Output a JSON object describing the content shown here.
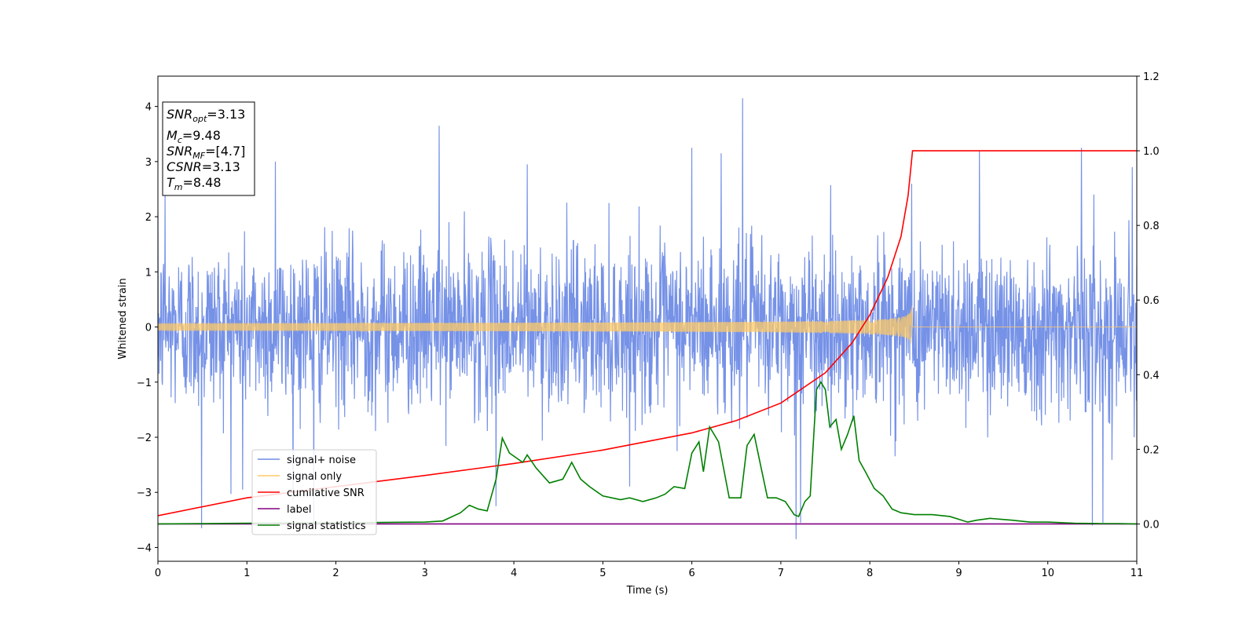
{
  "chart_data": {
    "type": "line",
    "xlabel": "Time (s)",
    "ylabel": "Whitened strain",
    "xlim": [
      0,
      11
    ],
    "ylim_left": [
      -4.25,
      4.55
    ],
    "ylim_right": [
      -0.1,
      1.2
    ],
    "x_ticks": [
      "0",
      "1",
      "2",
      "3",
      "4",
      "5",
      "6",
      "7",
      "8",
      "9",
      "10",
      "11"
    ],
    "y_left_ticks": [
      "4",
      "3",
      "2",
      "1",
      "0",
      "−1",
      "−2",
      "−3",
      "−4"
    ],
    "y_right_ticks": [
      "1.2",
      "1.0",
      "0.8",
      "0.6",
      "0.4",
      "0.2",
      "0.0"
    ],
    "info_box": {
      "snr_opt": {
        "base": "SNR",
        "sub": "opt",
        "value": "=3.13"
      },
      "mc": {
        "base": "M",
        "sub": "c",
        "value": "=9.48"
      },
      "snr_mf": {
        "base": "SNR",
        "sub": "MF",
        "value": "=[4.7]"
      },
      "csnr": {
        "base": "CSNR",
        "sub": "",
        "value": "=3.13"
      },
      "tm": {
        "base": "T",
        "sub": "m",
        "value": "=8.48"
      }
    },
    "legend": [
      {
        "label": "signal+ noise",
        "color": "#6f8ce6"
      },
      {
        "label": "signal only",
        "color": "#ffc966"
      },
      {
        "label": "cumilative SNR",
        "color": "#ff0000"
      },
      {
        "label": "label",
        "color": "#800080"
      },
      {
        "label": "signal statistics",
        "color": "#008000"
      }
    ],
    "series": [
      {
        "name": "signal+ noise",
        "axis": "left",
        "color": "#6f8ce6",
        "envelope_std": 0.75,
        "spikes": [
          {
            "x": 0.08,
            "y": 2.4
          },
          {
            "x": 0.49,
            "y": -3.65
          },
          {
            "x": 0.95,
            "y": -2.95
          },
          {
            "x": 1.32,
            "y": 3.0
          },
          {
            "x": 1.75,
            "y": -3.55
          },
          {
            "x": 3.16,
            "y": 3.65
          },
          {
            "x": 3.8,
            "y": -3.25
          },
          {
            "x": 4.15,
            "y": 2.95
          },
          {
            "x": 6.0,
            "y": 3.25
          },
          {
            "x": 6.33,
            "y": 3.15
          },
          {
            "x": 6.57,
            "y": 4.15
          },
          {
            "x": 7.17,
            "y": -3.85
          },
          {
            "x": 7.22,
            "y": -3.55
          },
          {
            "x": 8.47,
            "y": 2.6
          },
          {
            "x": 9.23,
            "y": 3.2
          },
          {
            "x": 10.38,
            "y": 3.25
          },
          {
            "x": 10.5,
            "y": -3.6
          },
          {
            "x": 10.62,
            "y": -3.55
          },
          {
            "x": 10.95,
            "y": 2.9
          }
        ]
      },
      {
        "name": "signal only",
        "axis": "left",
        "color": "#ffc966",
        "merger_time": 8.48,
        "peak_amplitude": 0.5
      },
      {
        "name": "cumilative SNR",
        "axis": "right",
        "color": "#ff0000",
        "x": [
          0,
          1,
          2,
          3,
          4,
          5,
          6,
          6.5,
          7,
          7.5,
          7.8,
          8.0,
          8.2,
          8.35,
          8.43,
          8.48,
          9,
          10,
          11
        ],
        "y": [
          0.022,
          0.07,
          0.1,
          0.13,
          0.162,
          0.198,
          0.244,
          0.277,
          0.324,
          0.405,
          0.485,
          0.56,
          0.66,
          0.77,
          0.88,
          1.0,
          1.0,
          1.0,
          1.0
        ]
      },
      {
        "name": "label",
        "axis": "right",
        "color": "#800080",
        "x": [
          0,
          11
        ],
        "y": [
          0,
          0
        ]
      },
      {
        "name": "signal statistics",
        "axis": "right",
        "color": "#008000",
        "x": [
          0,
          1,
          2,
          2.5,
          3.0,
          3.2,
          3.4,
          3.5,
          3.6,
          3.7,
          3.8,
          3.87,
          3.95,
          4.1,
          4.15,
          4.25,
          4.4,
          4.55,
          4.65,
          4.75,
          4.85,
          5.0,
          5.2,
          5.3,
          5.45,
          5.6,
          5.7,
          5.8,
          5.92,
          6.0,
          6.08,
          6.13,
          6.2,
          6.3,
          6.42,
          6.55,
          6.62,
          6.7,
          6.77,
          6.85,
          6.95,
          7.05,
          7.15,
          7.2,
          7.27,
          7.33,
          7.4,
          7.45,
          7.5,
          7.55,
          7.62,
          7.68,
          7.75,
          7.82,
          7.88,
          7.95,
          8.05,
          8.15,
          8.25,
          8.35,
          8.5,
          8.7,
          8.9,
          9.1,
          9.2,
          9.35,
          9.6,
          9.8,
          10.0,
          10.3,
          10.6,
          10.8,
          11.0
        ],
        "y": [
          0.0,
          0.002,
          0.003,
          0.004,
          0.005,
          0.008,
          0.03,
          0.05,
          0.04,
          0.035,
          0.12,
          0.23,
          0.19,
          0.165,
          0.185,
          0.15,
          0.11,
          0.12,
          0.165,
          0.12,
          0.1,
          0.075,
          0.065,
          0.07,
          0.06,
          0.07,
          0.08,
          0.1,
          0.095,
          0.19,
          0.22,
          0.14,
          0.26,
          0.22,
          0.07,
          0.07,
          0.21,
          0.24,
          0.16,
          0.07,
          0.07,
          0.06,
          0.025,
          0.02,
          0.06,
          0.075,
          0.36,
          0.38,
          0.36,
          0.26,
          0.28,
          0.2,
          0.24,
          0.29,
          0.17,
          0.14,
          0.095,
          0.075,
          0.04,
          0.03,
          0.025,
          0.025,
          0.02,
          0.005,
          0.01,
          0.015,
          0.01,
          0.005,
          0.005,
          0.002,
          0.001,
          0.001,
          0.0
        ]
      }
    ]
  }
}
